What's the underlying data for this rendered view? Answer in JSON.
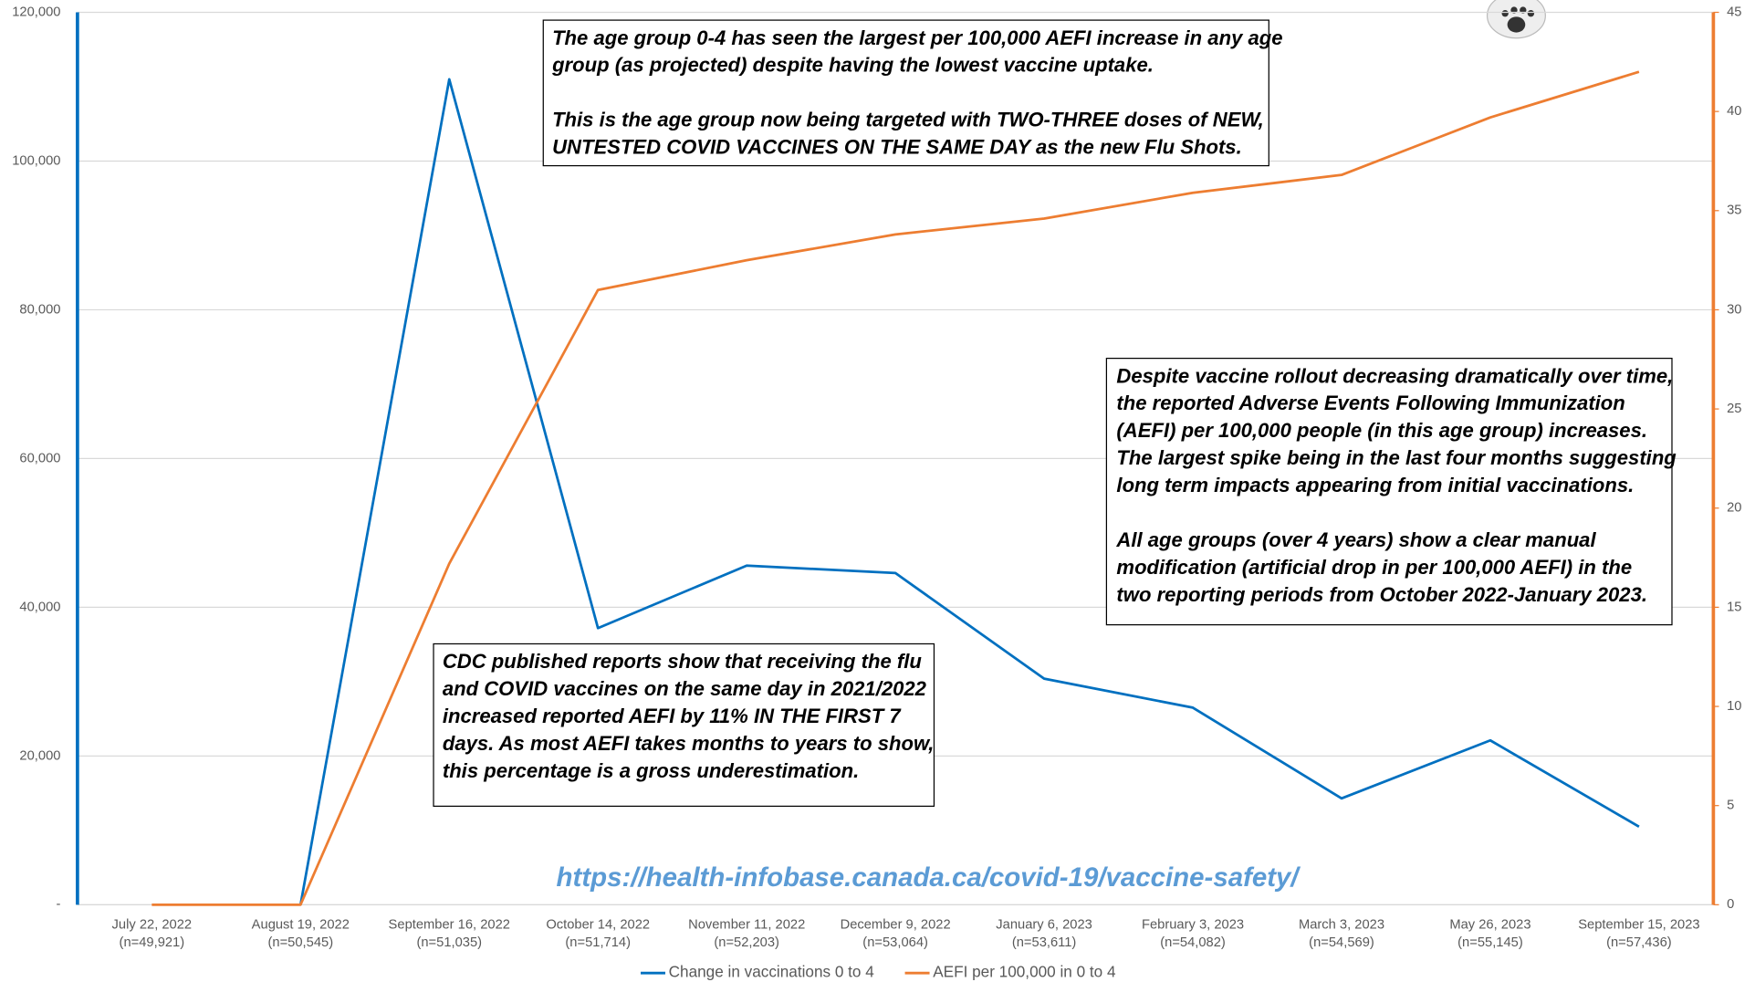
{
  "chart_data": {
    "type": "line",
    "categories": [
      "July 22, 2022",
      "August 19, 2022",
      "September 16, 2022",
      "October 14, 2022",
      "November 11, 2022",
      "December 9, 2022",
      "January 6, 2023",
      "February 3, 2023",
      "March 3, 2023",
      "May 26, 2023",
      "September 15, 2023"
    ],
    "category_notes": [
      "(n=49,921)",
      "(n=50,545)",
      "(n=51,035)",
      "(n=51,714)",
      "(n=52,203)",
      "(n=53,064)",
      "(n=53,611)",
      "(n=54,082)",
      "(n=54,569)",
      "(n=55,145)",
      "(n=57,436)"
    ],
    "series": [
      {
        "name": "Change in vaccinations 0 to 4",
        "color": "#0070c0",
        "values": [
          null,
          0,
          111000,
          37200,
          45600,
          44600,
          30400,
          26500,
          14300,
          22100,
          10500
        ]
      },
      {
        "name": "AEFI per 100,000 in 0 to 4",
        "color": "#ed7d31",
        "axis": "y2",
        "values": [
          0,
          0,
          17.2,
          31.0,
          32.5,
          33.8,
          34.6,
          35.9,
          36.8,
          39.7,
          42.0
        ]
      }
    ],
    "ylim": [
      0,
      120000
    ],
    "yticks": [
      {
        "value": 0,
        "label": "-"
      },
      {
        "value": 20000,
        "label": "20,000"
      },
      {
        "value": 40000,
        "label": "40,000"
      },
      {
        "value": 60000,
        "label": "60,000"
      },
      {
        "value": 80000,
        "label": "80,000"
      },
      {
        "value": 100000,
        "label": "100,000"
      },
      {
        "value": 120000,
        "label": "120,000"
      }
    ],
    "y2lim": [
      0,
      45
    ],
    "y2ticks": [
      0,
      5,
      10,
      15,
      20,
      25,
      30,
      35,
      40,
      45
    ],
    "grid": true,
    "legend": "bottom",
    "annotations": [
      {
        "paragraphs": [
          [
            "The age group 0-4 has seen the largest per 100,000 AEFI increase in any age",
            "group (as projected) despite having the lowest vaccine uptake."
          ],
          [
            "This is the age group now being targeted with TWO-THREE doses of NEW,",
            "UNTESTED COVID VACCINES ON THE SAME DAY as the new Flu Shots."
          ]
        ]
      },
      {
        "paragraphs": [
          [
            "Despite vaccine rollout decreasing dramatically over time,",
            "the reported Adverse Events Following Immunization",
            "(AEFI) per 100,000 people (in this age group) increases.",
            "The largest spike being in the last four months suggesting",
            "long term impacts appearing from initial vaccinations."
          ],
          [
            "All age groups (over 4 years) show a clear manual",
            "modification (artificial drop in per 100,000 AEFI)  in the",
            "two reporting periods from October 2022-January 2023."
          ]
        ]
      },
      {
        "paragraphs": [
          [
            "CDC published reports show that receiving the flu",
            "and COVID vaccines on the same day in 2021/2022",
            "increased reported AEFI by 11% IN THE FIRST 7",
            "days. As most AEFI takes months to years to show,",
            "this percentage is a gross underestimation."
          ]
        ]
      }
    ],
    "source": "https://health-infobase.canada.ca/covid-19/vaccine-safety/"
  }
}
